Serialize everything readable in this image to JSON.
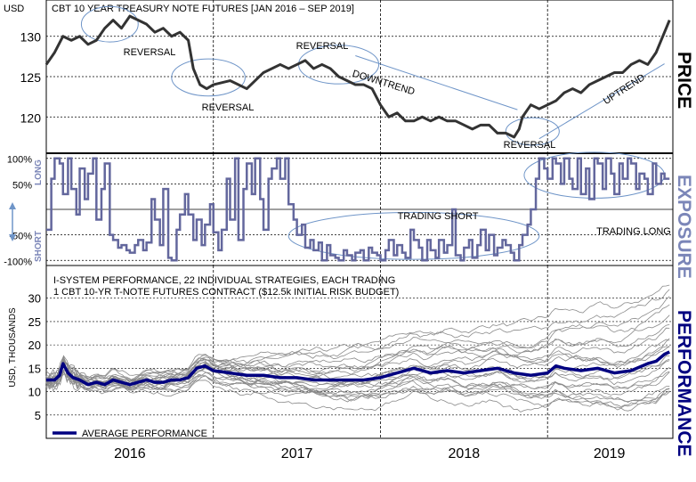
{
  "chart_data": [
    {
      "type": "line",
      "panel": "price",
      "title": "CBT 10 YEAR TREASURY NOTE FUTURES [JAN 2016 – SEP 2019]",
      "ylabel": "USD",
      "side_label": "PRICE",
      "ylim": [
        115.5,
        134.5
      ],
      "yticks": [
        120,
        125,
        130
      ],
      "x_range": [
        2016.0,
        2019.75
      ],
      "grid": "dashed",
      "colors": {
        "line": "#333333",
        "ellipse": "#6f95c8",
        "trend": "#6f95c8"
      },
      "series": [
        {
          "x": [
            2016.0,
            2016.05,
            2016.1,
            2016.15,
            2016.2,
            2016.25,
            2016.3,
            2016.35,
            2016.4,
            2016.45,
            2016.5,
            2016.55,
            2016.6,
            2016.65,
            2016.7,
            2016.75,
            2016.8,
            2016.85,
            2016.88,
            2016.92,
            2016.96,
            2017.0,
            2017.1,
            2017.2,
            2017.3,
            2017.4,
            2017.45,
            2017.5,
            2017.55,
            2017.6,
            2017.65,
            2017.7,
            2017.75,
            2017.8,
            2017.85,
            2017.9,
            2017.95,
            2018.0,
            2018.05,
            2018.1,
            2018.15,
            2018.2,
            2018.25,
            2018.3,
            2018.35,
            2018.4,
            2018.45,
            2018.5,
            2018.55,
            2018.6,
            2018.65,
            2018.7,
            2018.75,
            2018.8,
            2018.83,
            2018.85,
            2018.9,
            2018.95,
            2019.0,
            2019.05,
            2019.1,
            2019.15,
            2019.2,
            2019.25,
            2019.3,
            2019.35,
            2019.4,
            2019.45,
            2019.5,
            2019.55,
            2019.6,
            2019.65,
            2019.7,
            2019.73
          ],
          "values": [
            126.5,
            128.0,
            130.0,
            129.5,
            130.0,
            129.0,
            129.5,
            131.0,
            132.0,
            131.0,
            132.5,
            132.0,
            131.5,
            130.5,
            131.0,
            130.0,
            130.5,
            129.5,
            126.0,
            124.0,
            123.5,
            124.0,
            124.5,
            123.5,
            125.5,
            126.5,
            126.0,
            126.5,
            127.0,
            126.0,
            126.5,
            126.0,
            125.0,
            124.5,
            124.0,
            124.0,
            123.5,
            121.5,
            120.0,
            120.5,
            119.5,
            119.5,
            120.0,
            119.5,
            120.0,
            119.5,
            119.5,
            119.0,
            118.5,
            119.0,
            119.0,
            118.0,
            118.0,
            117.5,
            118.5,
            120.0,
            121.5,
            121.0,
            121.5,
            122.0,
            123.0,
            123.5,
            123.0,
            124.0,
            124.5,
            125.0,
            125.5,
            125.5,
            126.5,
            127.0,
            126.5,
            128.0,
            130.5,
            132.0
          ]
        }
      ],
      "annotations": [
        "REVERSAL",
        "REVERSAL",
        "REVERSAL",
        "DOWNTREND",
        "REVERSAL",
        "UPTREND"
      ],
      "ellipses": [
        {
          "cx": 2016.38,
          "cy": 131.5,
          "rx": 0.17,
          "ry": 2.2
        },
        {
          "cx": 2016.97,
          "cy": 124.9,
          "rx": 0.22,
          "ry": 2.3
        },
        {
          "cx": 2017.75,
          "cy": 126.5,
          "rx": 0.24,
          "ry": 2.4
        },
        {
          "cx": 2018.91,
          "cy": 118.2,
          "rx": 0.16,
          "ry": 1.7
        }
      ],
      "trendlines": [
        {
          "x1": 2017.85,
          "y1": 127.6,
          "x2": 2018.82,
          "y2": 120.9
        },
        {
          "x1": 2018.95,
          "y1": 117.3,
          "x2": 2019.7,
          "y2": 126.6
        }
      ]
    },
    {
      "type": "line",
      "panel": "exposure",
      "side_label": "EXPOSURE",
      "axis_side_labels": [
        "LONG",
        "SHORT"
      ],
      "ylim": [
        -110,
        110
      ],
      "yticks": [
        100,
        50,
        0,
        -50,
        -100
      ],
      "ytick_labels": [
        "100%",
        "50%",
        "",
        "-50%",
        "-100%"
      ],
      "x_range": [
        2016.0,
        2019.75
      ],
      "colors": {
        "line": "#63679d",
        "ellipse": "#6f95c8"
      },
      "annotations": [
        "TRADING SHORT",
        "TRADING LONG"
      ],
      "ellipses": [
        {
          "cx": 2018.2,
          "cy": -52,
          "rx": 0.75,
          "ry": 46
        },
        {
          "cx": 2019.28,
          "cy": 67,
          "rx": 0.42,
          "ry": 45
        }
      ],
      "series": [
        {
          "x": [
            2016.0,
            2016.03,
            2016.05,
            2016.08,
            2016.1,
            2016.13,
            2016.15,
            2016.18,
            2016.2,
            2016.23,
            2016.25,
            2016.28,
            2016.3,
            2016.33,
            2016.35,
            2016.38,
            2016.4,
            2016.43,
            2016.45,
            2016.48,
            2016.5,
            2016.53,
            2016.55,
            2016.58,
            2016.6,
            2016.63,
            2016.65,
            2016.68,
            2016.7,
            2016.73,
            2016.75,
            2016.78,
            2016.8,
            2016.83,
            2016.85,
            2016.88,
            2016.9,
            2016.93,
            2016.95,
            2016.98,
            2017.0,
            2017.03,
            2017.05,
            2017.08,
            2017.1,
            2017.13,
            2017.15,
            2017.18,
            2017.2,
            2017.23,
            2017.25,
            2017.28,
            2017.3,
            2017.33,
            2017.35,
            2017.38,
            2017.4,
            2017.43,
            2017.45,
            2017.48,
            2017.5,
            2017.53,
            2017.55,
            2017.58,
            2017.6,
            2017.63,
            2017.65,
            2017.68,
            2017.7,
            2017.73,
            2017.75,
            2017.78,
            2017.8,
            2017.83,
            2017.85,
            2017.88,
            2017.9,
            2017.93,
            2017.95,
            2017.98,
            2018.0,
            2018.03,
            2018.05,
            2018.08,
            2018.1,
            2018.13,
            2018.15,
            2018.18,
            2018.2,
            2018.23,
            2018.25,
            2018.28,
            2018.3,
            2018.33,
            2018.35,
            2018.38,
            2018.4,
            2018.43,
            2018.45,
            2018.48,
            2018.5,
            2018.53,
            2018.55,
            2018.58,
            2018.6,
            2018.63,
            2018.65,
            2018.68,
            2018.7,
            2018.73,
            2018.75,
            2018.78,
            2018.8,
            2018.83,
            2018.85,
            2018.88,
            2018.9,
            2018.93,
            2018.95,
            2018.98,
            2019.0,
            2019.03,
            2019.05,
            2019.08,
            2019.1,
            2019.13,
            2019.15,
            2019.18,
            2019.2,
            2019.23,
            2019.25,
            2019.28,
            2019.3,
            2019.33,
            2019.35,
            2019.38,
            2019.4,
            2019.43,
            2019.45,
            2019.48,
            2019.5,
            2019.53,
            2019.55,
            2019.58,
            2019.6,
            2019.63,
            2019.65,
            2019.68,
            2019.7,
            2019.73
          ],
          "values": [
            -40,
            60,
            100,
            90,
            30,
            100,
            40,
            -10,
            80,
            20,
            70,
            100,
            -20,
            40,
            90,
            -50,
            -60,
            -75,
            -70,
            -80,
            -85,
            -70,
            -60,
            -80,
            -65,
            20,
            -20,
            -70,
            40,
            -95,
            -100,
            -40,
            -10,
            30,
            -10,
            -60,
            -20,
            -70,
            -30,
            10,
            -45,
            -80,
            -40,
            60,
            -20,
            100,
            -60,
            40,
            90,
            30,
            100,
            20,
            -40,
            60,
            80,
            100,
            60,
            100,
            10,
            -20,
            -50,
            -30,
            -75,
            -60,
            -80,
            -65,
            -100,
            -70,
            -90,
            -95,
            -100,
            -80,
            -90,
            -100,
            -85,
            -80,
            -100,
            -75,
            -85,
            -90,
            -100,
            -80,
            -60,
            -90,
            -70,
            -85,
            -95,
            -40,
            -60,
            -75,
            -100,
            -60,
            -80,
            -95,
            -60,
            -85,
            -70,
            0,
            -90,
            -100,
            -75,
            -60,
            -95,
            -70,
            -40,
            -80,
            -50,
            -90,
            -75,
            -60,
            -70,
            -85,
            -100,
            -70,
            -50,
            -30,
            0,
            60,
            100,
            80,
            60,
            100,
            90,
            50,
            100,
            60,
            40,
            100,
            30,
            80,
            20,
            100,
            90,
            40,
            100,
            70,
            30,
            90,
            60,
            100,
            90,
            40,
            70,
            60,
            30,
            90,
            50,
            70,
            60,
            60
          ]
        }
      ]
    },
    {
      "type": "line",
      "panel": "performance",
      "title": "I-SYSTEM PERFORMANCE, 22 INDIVIDUAL STRATEGIES, EACH TRADING 1 CBT 10-YR T-NOTE FUTURES CONTRACT ($12.5k INITIAL RISK BUDGET)",
      "ylabel": "USD, THOUSANDS",
      "side_label": "PERFORMANCE",
      "ylim": [
        0,
        37
      ],
      "yticks": [
        5,
        10,
        15,
        20,
        25,
        30
      ],
      "x_range": [
        2016.0,
        2019.75
      ],
      "x_tick_labels": [
        "2016",
        "2017",
        "2018",
        "2019"
      ],
      "colors": {
        "average": "#000080",
        "strategies": "#7a7a7a"
      },
      "legend": "bottom-left",
      "strategy_count": 22,
      "strategy_end_values": [
        34,
        32,
        30,
        28,
        27,
        25,
        24,
        22,
        21,
        20,
        19,
        18,
        17,
        16,
        15,
        14,
        13,
        12,
        11,
        10,
        9,
        8
      ],
      "series": [
        {
          "name": "AVERAGE PERFORMANCE",
          "x": [
            2016.0,
            2016.05,
            2016.08,
            2016.1,
            2016.13,
            2016.16,
            2016.2,
            2016.25,
            2016.3,
            2016.35,
            2016.4,
            2016.45,
            2016.5,
            2016.55,
            2016.6,
            2016.65,
            2016.7,
            2016.75,
            2016.8,
            2016.85,
            2016.9,
            2016.95,
            2017.0,
            2017.1,
            2017.2,
            2017.3,
            2017.4,
            2017.5,
            2017.6,
            2017.7,
            2017.8,
            2017.9,
            2018.0,
            2018.1,
            2018.2,
            2018.3,
            2018.4,
            2018.5,
            2018.6,
            2018.7,
            2018.8,
            2018.9,
            2019.0,
            2019.05,
            2019.1,
            2019.2,
            2019.3,
            2019.4,
            2019.5,
            2019.6,
            2019.65,
            2019.7,
            2019.73
          ],
          "values": [
            12.5,
            12.5,
            13.5,
            16.0,
            14.0,
            13.0,
            12.5,
            11.5,
            12.0,
            11.5,
            12.5,
            12.0,
            11.5,
            12.0,
            12.5,
            12.0,
            12.0,
            12.5,
            12.5,
            13.0,
            15.0,
            15.5,
            14.5,
            14.0,
            13.5,
            13.5,
            13.0,
            13.0,
            12.5,
            12.5,
            12.5,
            12.5,
            13.0,
            14.0,
            15.0,
            14.0,
            14.5,
            14.0,
            14.5,
            15.0,
            14.0,
            13.5,
            14.0,
            15.5,
            15.0,
            14.5,
            15.0,
            14.0,
            14.5,
            16.0,
            16.5,
            18.0,
            18.5
          ]
        }
      ]
    }
  ]
}
